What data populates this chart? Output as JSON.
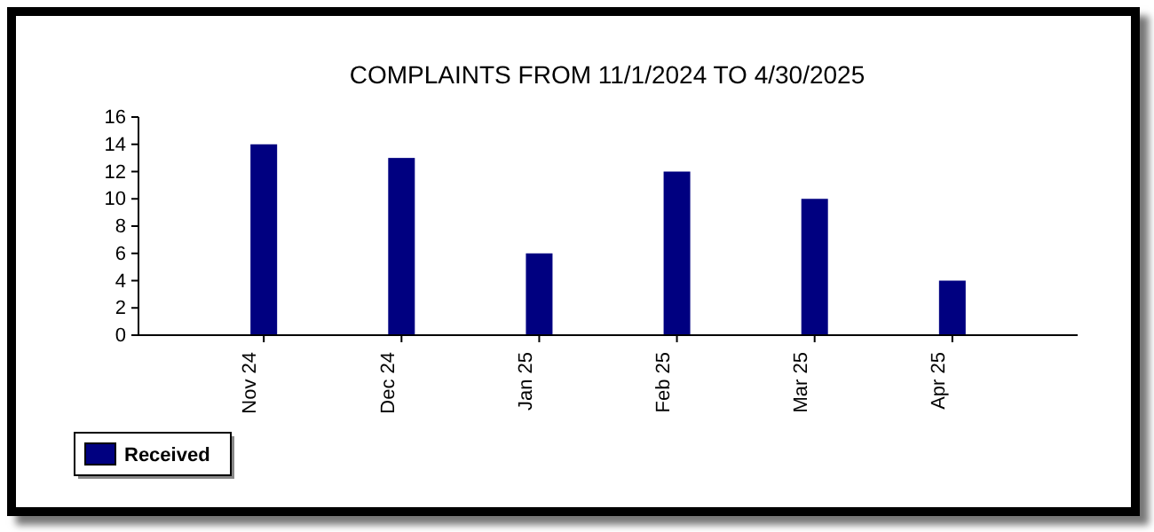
{
  "chart_data": {
    "type": "bar",
    "title": "COMPLAINTS FROM 11/1/2024 TO 4/30/2025",
    "categories": [
      "Nov 24",
      "Dec 24",
      "Jan 25",
      "Feb 25",
      "Mar 25",
      "Apr 25"
    ],
    "series": [
      {
        "name": "Received",
        "color": "#000080",
        "values": [
          14,
          13,
          6,
          12,
          10,
          4
        ]
      }
    ],
    "ylim": [
      0,
      16
    ],
    "yticks": [
      0,
      2,
      4,
      6,
      8,
      10,
      12,
      14,
      16
    ],
    "grid": false,
    "legend": "bottom left"
  }
}
